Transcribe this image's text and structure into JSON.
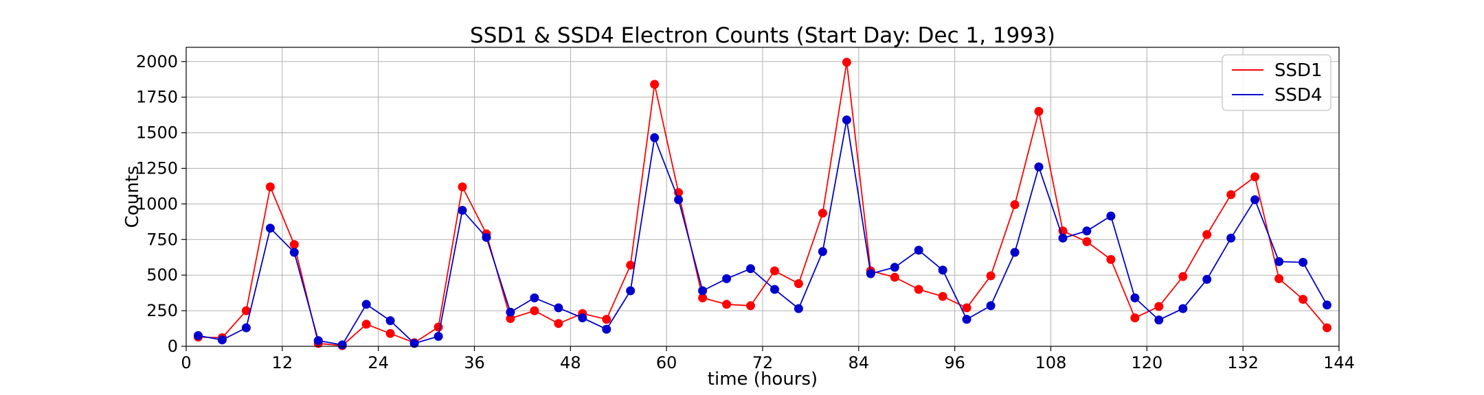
{
  "chart_data": {
    "type": "line",
    "title": "SSD1 & SSD4 Electron Counts (Start Day: Dec 1, 1993)",
    "xlabel": "time (hours)",
    "ylabel": "Counts",
    "xlim": [
      0,
      144
    ],
    "ylim": [
      0,
      2100
    ],
    "xticks": [
      0,
      12,
      24,
      36,
      48,
      60,
      72,
      84,
      96,
      108,
      120,
      132,
      144
    ],
    "yticks": [
      0,
      250,
      500,
      750,
      1000,
      1250,
      1500,
      1750,
      2000
    ],
    "grid": true,
    "legend_position": "top-right",
    "x": [
      1.5,
      4.5,
      7.5,
      10.5,
      13.5,
      16.5,
      19.5,
      22.5,
      25.5,
      28.5,
      31.5,
      34.5,
      37.5,
      40.5,
      43.5,
      46.5,
      49.5,
      52.5,
      55.5,
      58.5,
      61.5,
      64.5,
      67.5,
      70.5,
      73.5,
      76.5,
      79.5,
      82.5,
      85.5,
      88.5,
      91.5,
      94.5,
      97.5,
      100.5,
      103.5,
      106.5,
      109.5,
      112.5,
      115.5,
      118.5,
      121.5,
      124.5,
      127.5,
      130.5,
      133.5,
      136.5,
      139.5,
      142.5
    ],
    "series": [
      {
        "name": "SSD1",
        "color": "#ff0000",
        "values": [
          65,
          60,
          250,
          1120,
          715,
          20,
          5,
          155,
          90,
          25,
          135,
          1120,
          790,
          195,
          250,
          160,
          230,
          190,
          570,
          1840,
          1080,
          340,
          295,
          285,
          530,
          440,
          935,
          1995,
          530,
          485,
          400,
          350,
          270,
          495,
          995,
          1650,
          810,
          735,
          610,
          200,
          280,
          490,
          785,
          1065,
          1190,
          475,
          330,
          130
        ]
      },
      {
        "name": "SSD4",
        "color": "#0000cc",
        "values": [
          75,
          45,
          130,
          830,
          660,
          40,
          10,
          295,
          180,
          20,
          70,
          955,
          765,
          240,
          340,
          270,
          200,
          120,
          390,
          1465,
          1030,
          390,
          475,
          545,
          400,
          265,
          665,
          1590,
          510,
          555,
          675,
          535,
          190,
          285,
          660,
          1260,
          760,
          810,
          915,
          340,
          185,
          265,
          470,
          760,
          1030,
          595,
          590,
          290
        ]
      }
    ]
  }
}
